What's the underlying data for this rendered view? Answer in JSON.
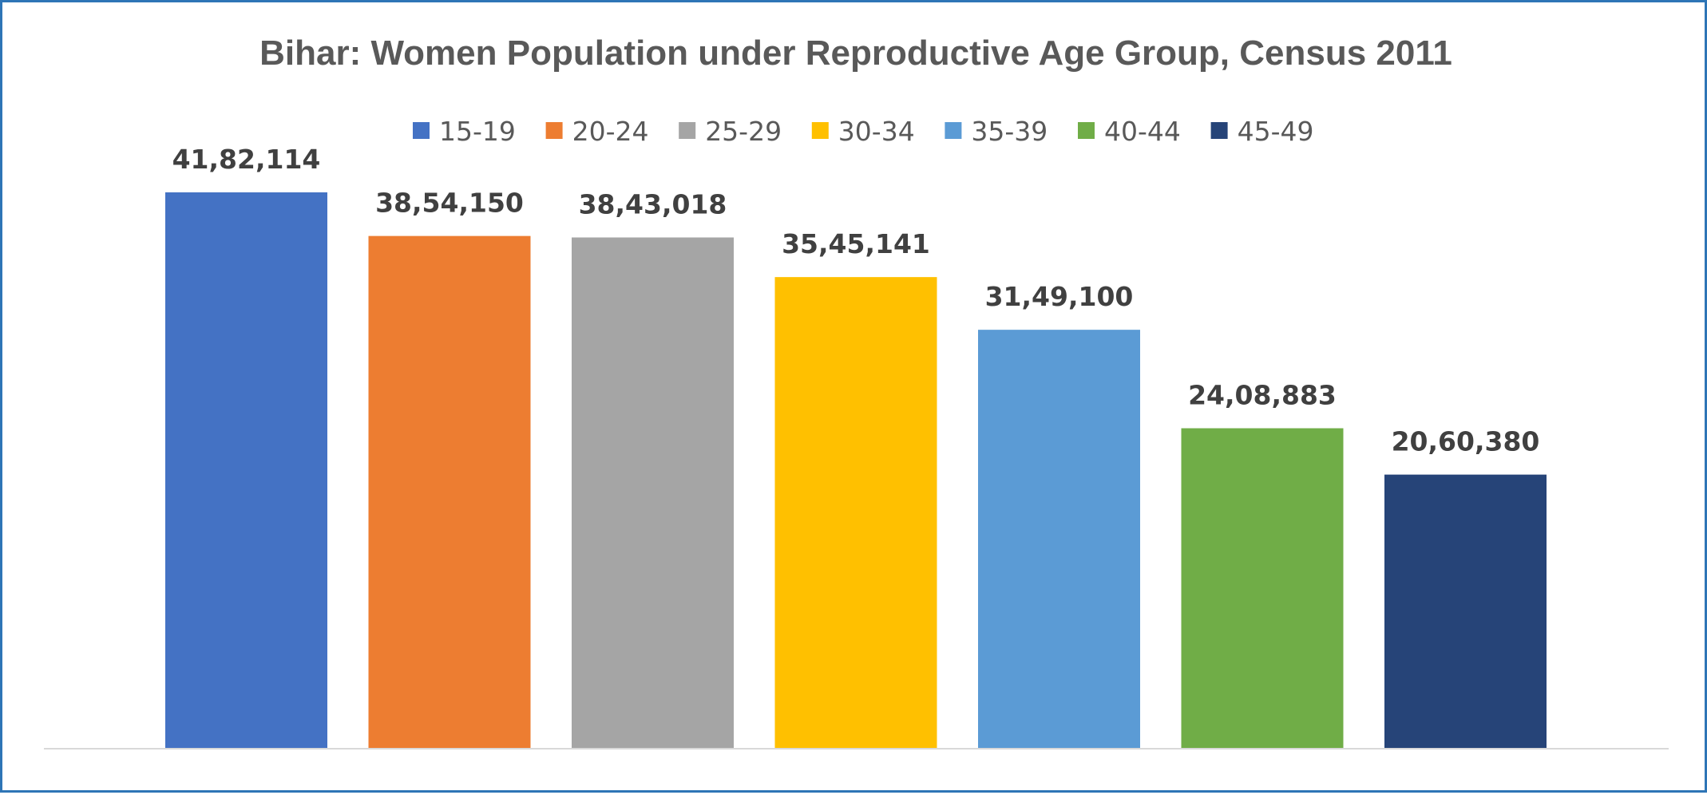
{
  "chart_data": {
    "type": "bar",
    "title": "Bihar: Women Population under Reproductive Age Group, Census 2011",
    "xlabel": "",
    "ylabel": "",
    "ylim": [
      0,
      4500000
    ],
    "grid": false,
    "legend_position": "top",
    "categories": [
      "15-19",
      "20-24",
      "25-29",
      "30-34",
      "35-39",
      "40-44",
      "45-49"
    ],
    "values": [
      4182114,
      3854150,
      3843018,
      3545141,
      3149100,
      2408883,
      2060380
    ],
    "value_labels": [
      "41,82,114",
      "38,54,150",
      "38,43,018",
      "35,45,141",
      "31,49,100",
      "24,08,883",
      "20,60,380"
    ],
    "colors": [
      "#4472c4",
      "#ed7d31",
      "#a5a5a5",
      "#ffc000",
      "#5b9bd5",
      "#70ad47",
      "#264478"
    ]
  }
}
